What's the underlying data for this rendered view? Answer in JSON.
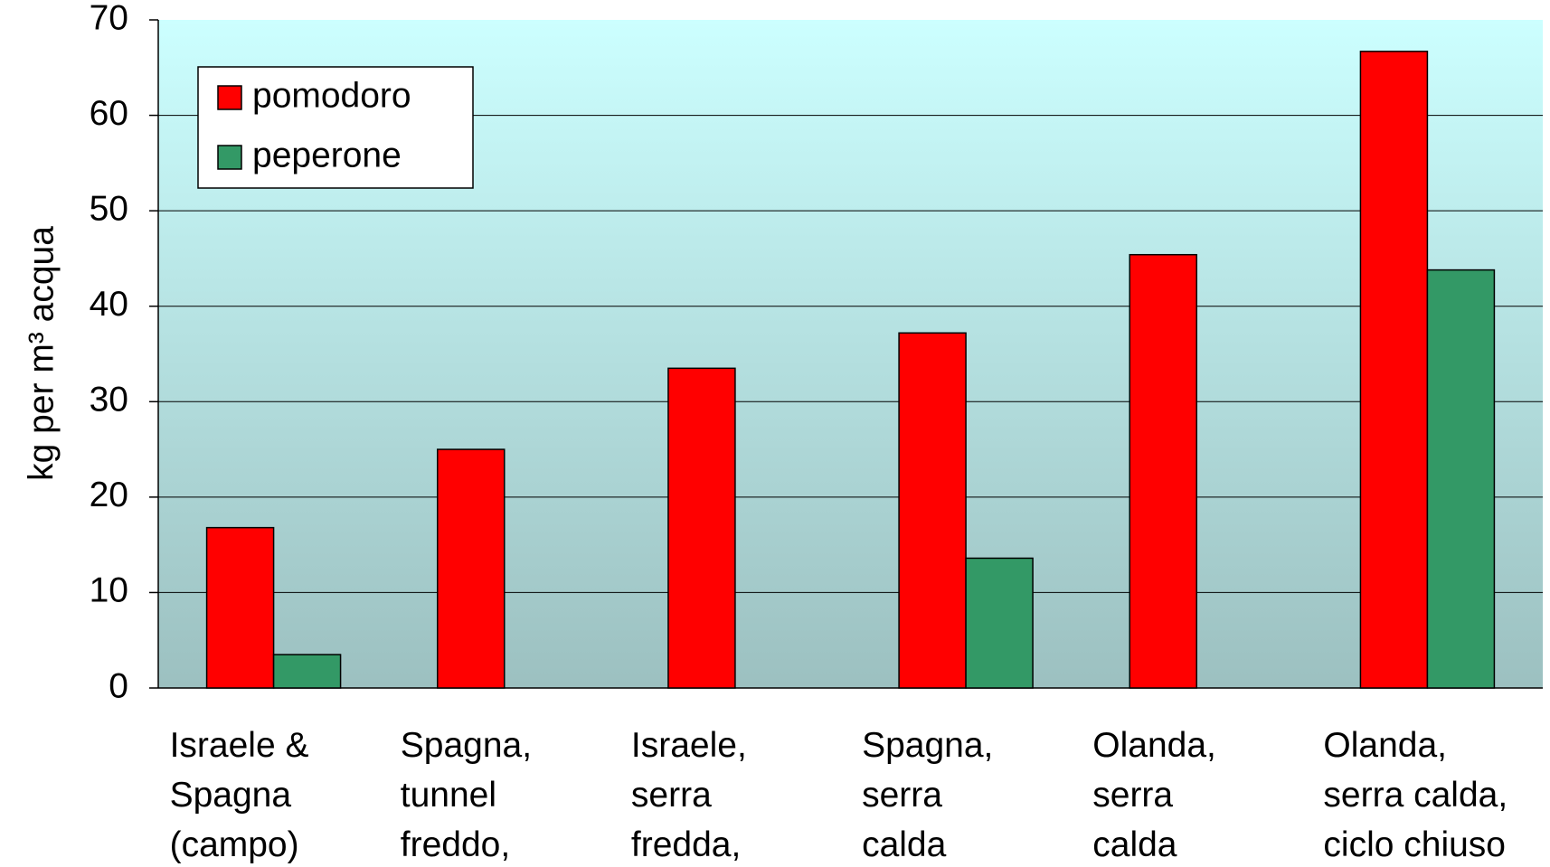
{
  "chart_data": {
    "type": "bar",
    "y_label": "kg  per m³ acqua",
    "categories": [
      "Israele &\nSpagna\n(campo)",
      "Spagna,\ntunnel\nfreddo,",
      "Israele,\nserra\nfredda,",
      "Spagna,\nserra\ncalda",
      "Olanda,\nserra\ncalda",
      "Olanda,\nserra calda,\nciclo chiuso"
    ],
    "series": [
      {
        "name": "pomodoro",
        "color": "#ff0000",
        "values": [
          16.8,
          25,
          33.5,
          37.2,
          45.4,
          66.7
        ]
      },
      {
        "name": "peperone",
        "color": "#339966",
        "values": [
          3.5,
          null,
          null,
          13.6,
          null,
          43.8
        ]
      }
    ],
    "ylim": [
      0,
      70
    ],
    "yticks": [
      0,
      10,
      20,
      30,
      40,
      50,
      60,
      70
    ],
    "grid": true,
    "legend": "upper-left"
  }
}
